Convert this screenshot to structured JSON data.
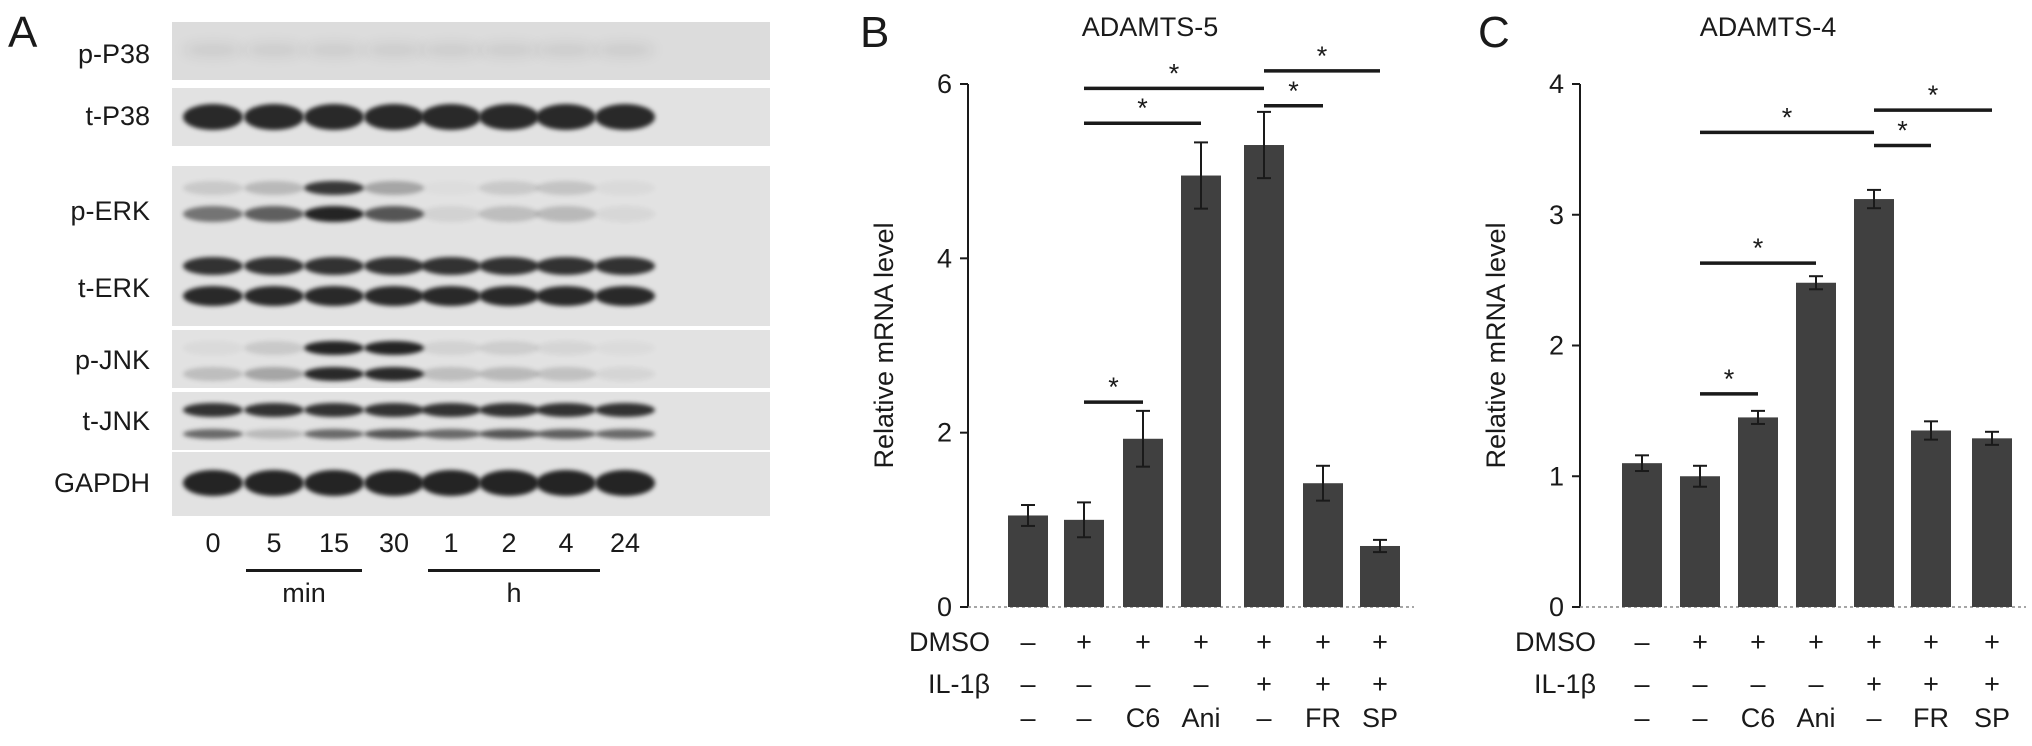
{
  "panels": {
    "A": {
      "letter": "A",
      "rows": [
        "p-P38",
        "t-P38",
        "p-ERK",
        "t-ERK",
        "p-JNK",
        "t-JNK",
        "GAPDH"
      ],
      "lanes": [
        "0",
        "5",
        "15",
        "30",
        "1",
        "2",
        "4",
        "24"
      ],
      "group_labels": [
        "min",
        "h"
      ]
    },
    "B": {
      "letter": "B"
    },
    "C": {
      "letter": "C"
    }
  },
  "chart_data": [
    {
      "type": "bar",
      "title": "ADAMTS-5",
      "ylabel": "Relative mRNA level",
      "ylim": [
        0,
        6
      ],
      "yticks": [
        0,
        2,
        4,
        6
      ],
      "values": [
        1.05,
        1.0,
        1.93,
        4.95,
        5.3,
        1.42,
        0.7
      ],
      "errors": [
        0.12,
        0.2,
        0.32,
        0.38,
        0.38,
        0.2,
        0.07
      ],
      "treatment_rows": [
        {
          "name": "DMSO",
          "values": [
            "–",
            "+",
            "+",
            "+",
            "+",
            "+",
            "+"
          ]
        },
        {
          "name": "IL-1β",
          "values": [
            "–",
            "–",
            "–",
            "–",
            "+",
            "+",
            "+"
          ]
        },
        {
          "name": "",
          "values": [
            "–",
            "–",
            "C6",
            "Ani",
            "–",
            "FR",
            "SP"
          ]
        }
      ],
      "significance": [
        {
          "from": 1,
          "to": 2,
          "level": 2.35,
          "label": "*"
        },
        {
          "from": 1,
          "to": 3,
          "level": 5.55,
          "label": "*"
        },
        {
          "from": 1,
          "to": 4,
          "level": 5.95,
          "label": "*"
        },
        {
          "from": 4,
          "to": 5,
          "level": 5.75,
          "label": "*"
        },
        {
          "from": 4,
          "to": 6,
          "level": 6.15,
          "label": "*"
        }
      ]
    },
    {
      "type": "bar",
      "title": "ADAMTS-4",
      "ylabel": "Relative mRNA level",
      "ylim": [
        0,
        4
      ],
      "yticks": [
        0,
        1,
        2,
        3,
        4
      ],
      "values": [
        1.1,
        1.0,
        1.45,
        2.48,
        3.12,
        1.35,
        1.29
      ],
      "errors": [
        0.06,
        0.08,
        0.05,
        0.05,
        0.07,
        0.07,
        0.05
      ],
      "treatment_rows": [
        {
          "name": "DMSO",
          "values": [
            "–",
            "+",
            "+",
            "+",
            "+",
            "+",
            "+"
          ]
        },
        {
          "name": "IL-1β",
          "values": [
            "–",
            "–",
            "–",
            "–",
            "+",
            "+",
            "+"
          ]
        },
        {
          "name": "",
          "values": [
            "–",
            "–",
            "C6",
            "Ani",
            "–",
            "FR",
            "SP"
          ]
        }
      ],
      "significance": [
        {
          "from": 1,
          "to": 2,
          "level": 1.63,
          "label": "*"
        },
        {
          "from": 1,
          "to": 3,
          "level": 2.63,
          "label": "*"
        },
        {
          "from": 1,
          "to": 4,
          "level": 3.63,
          "label": "*"
        },
        {
          "from": 4,
          "to": 5,
          "level": 3.53,
          "label": "*"
        },
        {
          "from": 4,
          "to": 6,
          "level": 3.8,
          "label": "*"
        }
      ]
    }
  ]
}
